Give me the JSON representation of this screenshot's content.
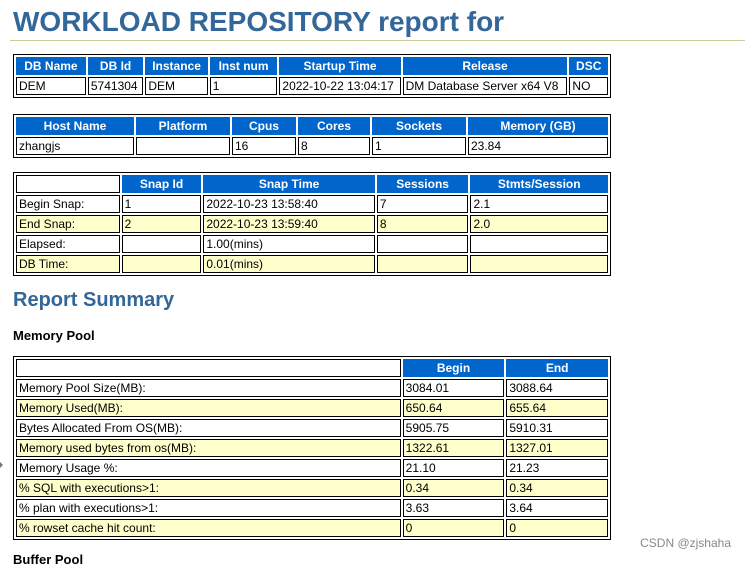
{
  "title": "WORKLOAD REPOSITORY report for",
  "db_table": {
    "headers": [
      "DB Name",
      "DB Id",
      "Instance",
      "Inst num",
      "Startup Time",
      "Release",
      "DSC"
    ],
    "row": [
      "DEM",
      "5741304",
      "DEM",
      "1",
      "2022-10-22 13:04:17",
      "DM Database Server x64 V8",
      "NO"
    ]
  },
  "host_table": {
    "headers": [
      "Host Name",
      "Platform",
      "Cpus",
      "Cores",
      "Sockets",
      "Memory (GB)"
    ],
    "row": [
      "zhangjs",
      "",
      "16",
      "8",
      "1",
      "23.84"
    ]
  },
  "snap_table": {
    "headers": [
      "",
      "Snap Id",
      "Snap Time",
      "Sessions",
      "Stmts/Session"
    ],
    "rows": [
      [
        "Begin Snap:",
        "1",
        "2022-10-23 13:58:40",
        "7",
        "2.1"
      ],
      [
        "End Snap:",
        "2",
        "2022-10-23 13:59:40",
        "8",
        "2.0"
      ],
      [
        "Elapsed:",
        "",
        "1.00(mins)",
        "",
        ""
      ],
      [
        "DB Time:",
        "",
        "0.01(mins)",
        "",
        ""
      ]
    ]
  },
  "report_summary_heading": "Report Summary",
  "memory_pool_heading": "Memory Pool",
  "memory_table": {
    "headers": [
      "",
      "Begin",
      "End"
    ],
    "rows": [
      [
        "Memory Pool Size(MB):",
        "3084.01",
        "3088.64"
      ],
      [
        "Memory Used(MB):",
        "650.64",
        "655.64"
      ],
      [
        "Bytes Allocated From OS(MB):",
        "5905.75",
        "5910.31"
      ],
      [
        "Memory used bytes from os(MB):",
        "1322.61",
        "1327.01"
      ],
      [
        "Memory Usage %:",
        "21.10",
        "21.23"
      ],
      [
        "% SQL with executions>1:",
        "0.34",
        "0.34"
      ],
      [
        "% plan with executions>1:",
        "3.63",
        "3.64"
      ],
      [
        "% rowset cache hit count:",
        "0",
        "0"
      ]
    ]
  },
  "buffer_pool_heading": "Buffer Pool",
  "watermark": "CSDN @zjshaha"
}
